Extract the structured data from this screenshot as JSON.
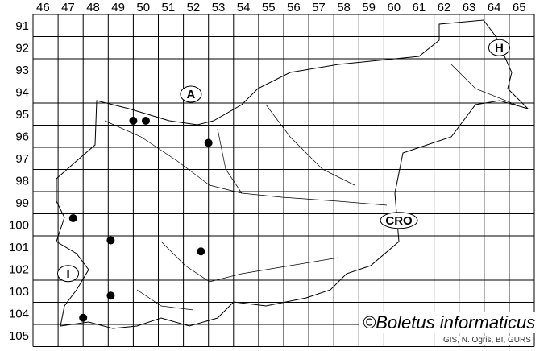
{
  "map": {
    "columns": [
      "46",
      "47",
      "48",
      "49",
      "50",
      "51",
      "52",
      "53",
      "54",
      "55",
      "56",
      "57",
      "58",
      "59",
      "60",
      "61",
      "62",
      "63",
      "64",
      "65"
    ],
    "rows": [
      "91",
      "92",
      "93",
      "94",
      "95",
      "96",
      "97",
      "98",
      "99",
      "100",
      "101",
      "102",
      "103",
      "104",
      "105"
    ],
    "country_labels": [
      {
        "text": "A",
        "col": 52.3,
        "row": 94.6
      },
      {
        "text": "H",
        "col": 64.6,
        "row": 92.5
      },
      {
        "text": "CRO",
        "col": 60.6,
        "row": 100.3
      },
      {
        "text": "I",
        "col": 47.4,
        "row": 102.7
      }
    ],
    "records": [
      {
        "col": 50.0,
        "row": 95.8
      },
      {
        "col": 50.5,
        "row": 95.8
      },
      {
        "col": 53.0,
        "row": 96.8
      },
      {
        "col": 47.6,
        "row": 100.2
      },
      {
        "col": 49.1,
        "row": 101.2
      },
      {
        "col": 52.7,
        "row": 101.7
      },
      {
        "col": 49.1,
        "row": 103.7
      },
      {
        "col": 48.0,
        "row": 104.7
      }
    ],
    "copyright": "©Boletus informaticus",
    "source": "GIS, N. Ogris, BI, GURS",
    "colors": {
      "grid": "#000000",
      "points": "#000000"
    }
  }
}
